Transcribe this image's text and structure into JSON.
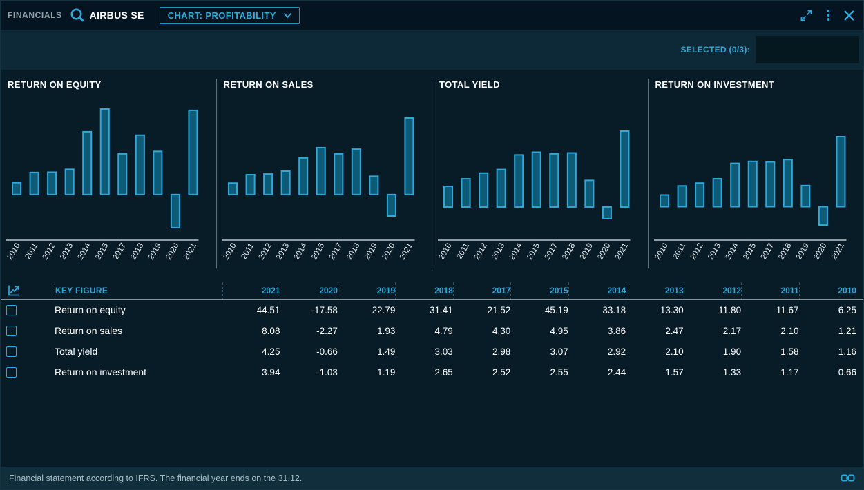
{
  "header": {
    "app_label": "FINANCIALS",
    "company": "AIRBUS SE",
    "chart_selector_label": "CHART: PROFITABILITY"
  },
  "subheader": {
    "selected_label": "SELECTED (0/3):"
  },
  "colors": {
    "accent": "#2fa8da",
    "bar_fill": "#0e5b77",
    "bar_stroke": "#2fa9db",
    "axis": "#e3eaed",
    "background": "#081c27",
    "topbar": "#041421",
    "band": "#0d2836",
    "footer_band": "#102e3c"
  },
  "chart_data": [
    {
      "type": "bar",
      "title": "RETURN ON EQUITY",
      "categories": [
        "2010",
        "2011",
        "2012",
        "2013",
        "2014",
        "2015",
        "2017",
        "2018",
        "2019",
        "2020",
        "2021"
      ],
      "values": [
        6.25,
        11.67,
        11.8,
        13.3,
        33.18,
        45.19,
        21.52,
        31.41,
        22.79,
        -17.58,
        44.51
      ],
      "xlabel": "",
      "ylabel": "",
      "grid": false,
      "legend": "none"
    },
    {
      "type": "bar",
      "title": "RETURN ON SALES",
      "categories": [
        "2010",
        "2011",
        "2012",
        "2013",
        "2014",
        "2015",
        "2017",
        "2018",
        "2019",
        "2020",
        "2021"
      ],
      "values": [
        1.21,
        2.1,
        2.17,
        2.47,
        3.86,
        4.95,
        4.3,
        4.79,
        1.93,
        -2.27,
        8.08
      ],
      "xlabel": "",
      "ylabel": "",
      "grid": false,
      "legend": "none"
    },
    {
      "type": "bar",
      "title": "TOTAL YIELD",
      "categories": [
        "2010",
        "2011",
        "2012",
        "2013",
        "2014",
        "2015",
        "2017",
        "2018",
        "2019",
        "2020",
        "2021"
      ],
      "values": [
        1.16,
        1.58,
        1.9,
        2.1,
        2.92,
        3.07,
        2.98,
        3.03,
        1.49,
        -0.66,
        4.25
      ],
      "xlabel": "",
      "ylabel": "",
      "grid": false,
      "legend": "none"
    },
    {
      "type": "bar",
      "title": "RETURN ON INVESTMENT",
      "categories": [
        "2010",
        "2011",
        "2012",
        "2013",
        "2014",
        "2015",
        "2017",
        "2018",
        "2019",
        "2020",
        "2021"
      ],
      "values": [
        0.66,
        1.17,
        1.33,
        1.57,
        2.44,
        2.55,
        2.52,
        2.65,
        1.19,
        -1.03,
        3.94
      ],
      "xlabel": "",
      "ylabel": "",
      "grid": false,
      "legend": "none"
    }
  ],
  "table": {
    "key_figure_label": "KEY FIGURE",
    "year_columns": [
      "2021",
      "2020",
      "2019",
      "2018",
      "2017",
      "2015",
      "2014",
      "2013",
      "2012",
      "2011",
      "2010"
    ],
    "rows": [
      {
        "label": "Return on equity",
        "values": [
          "44.51",
          "-17.58",
          "22.79",
          "31.41",
          "21.52",
          "45.19",
          "33.18",
          "13.30",
          "11.80",
          "11.67",
          "6.25"
        ]
      },
      {
        "label": "Return on sales",
        "values": [
          "8.08",
          "-2.27",
          "1.93",
          "4.79",
          "4.30",
          "4.95",
          "3.86",
          "2.47",
          "2.17",
          "2.10",
          "1.21"
        ]
      },
      {
        "label": "Total yield",
        "values": [
          "4.25",
          "-0.66",
          "1.49",
          "3.03",
          "2.98",
          "3.07",
          "2.92",
          "2.10",
          "1.90",
          "1.58",
          "1.16"
        ]
      },
      {
        "label": "Return on investment",
        "values": [
          "3.94",
          "-1.03",
          "1.19",
          "2.65",
          "2.52",
          "2.55",
          "2.44",
          "1.57",
          "1.33",
          "1.17",
          "0.66"
        ]
      }
    ]
  },
  "footer": {
    "note": "Financial statement according to IFRS. The financial year ends on the 31.12."
  }
}
